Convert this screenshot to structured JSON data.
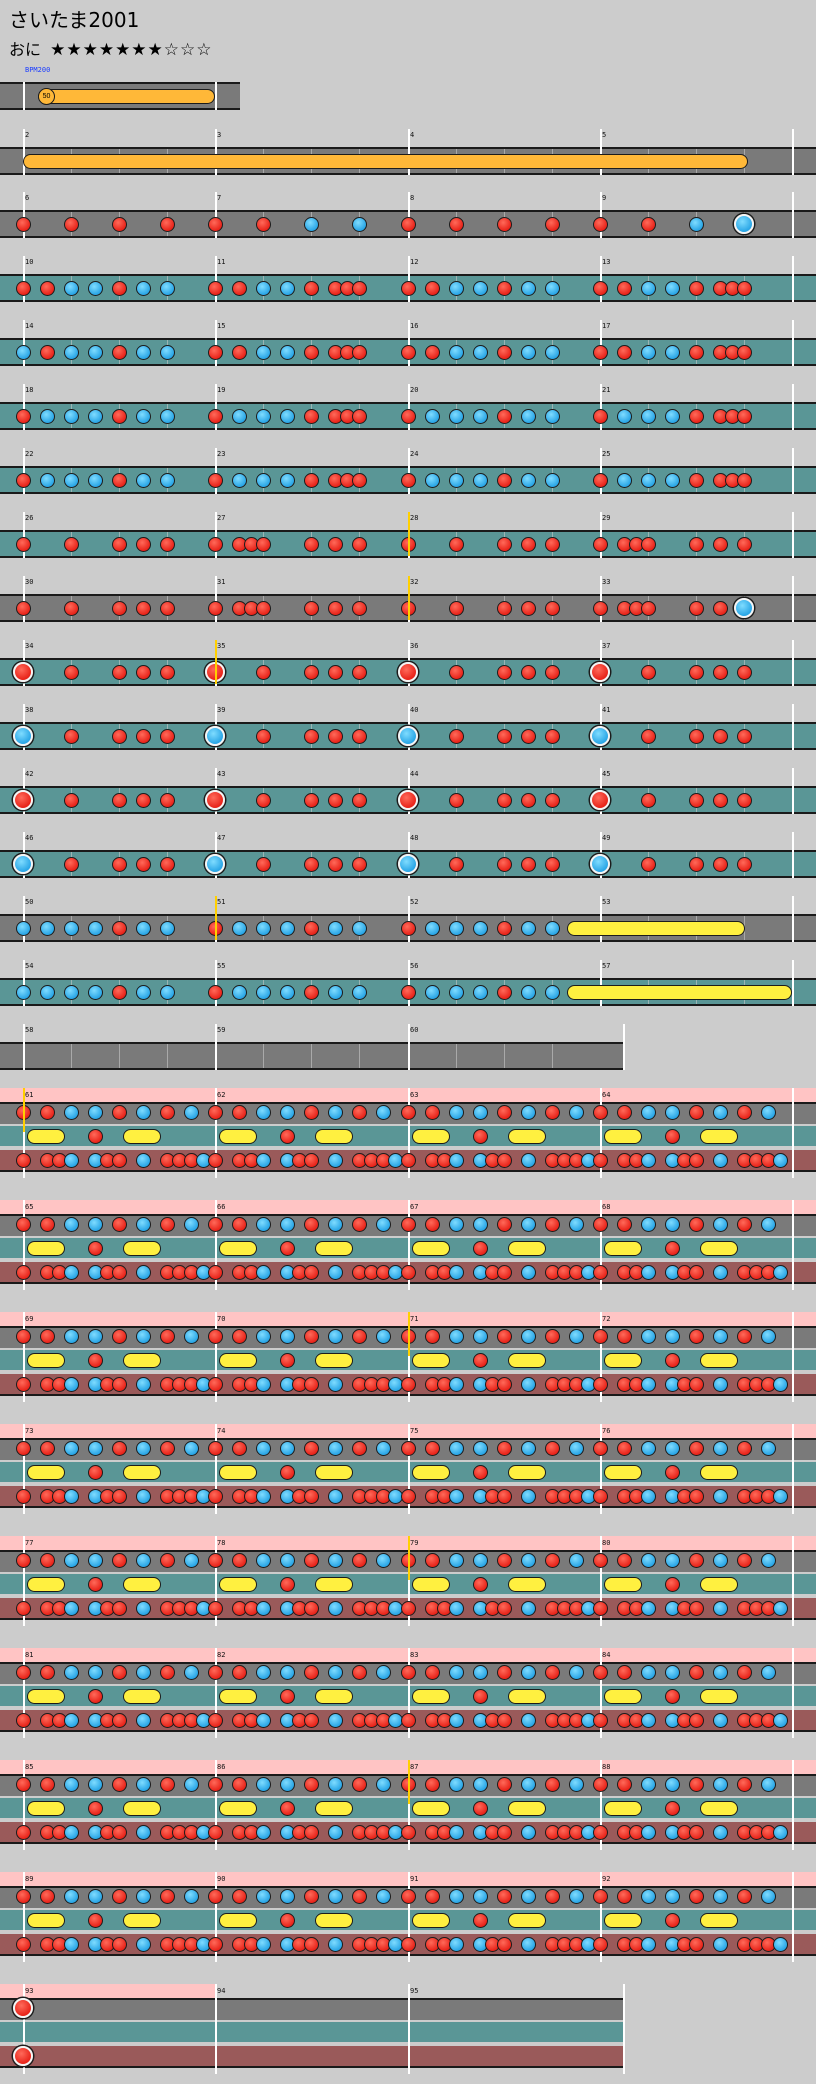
{
  "song": {
    "title": "さいたま2001",
    "difficulty_label": "おに",
    "stars": "★★★★★★★☆☆☆",
    "star_count": 7,
    "star_max": 10
  },
  "bpm_label": "BPM200",
  "colors": {
    "don": "#e8241a",
    "ka": "#2aa6e6",
    "roll": "#fff040",
    "balloon": "#ffb838",
    "lane_normal": "#7a7a7a",
    "lane_expert": "#5a9696",
    "lane_master": "#9a5a5a",
    "branch_marker": "#ffc4c4"
  },
  "balloon": {
    "hits": "50"
  },
  "measures": {
    "row1": [
      "2",
      "3",
      "4",
      "5"
    ],
    "row2": [
      "6",
      "7",
      "8",
      "9"
    ],
    "row3": [
      "10",
      "11",
      "12",
      "13"
    ],
    "row4": [
      "14",
      "15",
      "16",
      "17"
    ],
    "row5": [
      "18",
      "19",
      "20",
      "21"
    ],
    "row6": [
      "22",
      "23",
      "24",
      "25"
    ],
    "row7": [
      "26",
      "27",
      "28",
      "29"
    ],
    "row8": [
      "30",
      "31",
      "32",
      "33"
    ],
    "row9": [
      "34",
      "35",
      "36",
      "37"
    ],
    "row10": [
      "38",
      "39",
      "40",
      "41"
    ],
    "row11": [
      "42",
      "43",
      "44",
      "45"
    ],
    "row12": [
      "46",
      "47",
      "48",
      "49"
    ],
    "row13": [
      "50",
      "51",
      "52",
      "53"
    ],
    "row14": [
      "54",
      "55",
      "56",
      "57"
    ],
    "row15": [
      "58",
      "59",
      "60"
    ],
    "row16": [
      "61",
      "62",
      "63",
      "64"
    ],
    "row17": [
      "65",
      "66",
      "67",
      "68"
    ],
    "row18": [
      "69",
      "70",
      "71",
      "72"
    ],
    "row19": [
      "73",
      "74",
      "75",
      "76"
    ],
    "row20": [
      "77",
      "78",
      "79",
      "80"
    ],
    "row21": [
      "81",
      "82",
      "83",
      "84"
    ],
    "row22": [
      "85",
      "86",
      "87",
      "88"
    ],
    "row23": [
      "89",
      "90",
      "91",
      "92"
    ],
    "row24": [
      "93",
      "94",
      "95"
    ]
  }
}
